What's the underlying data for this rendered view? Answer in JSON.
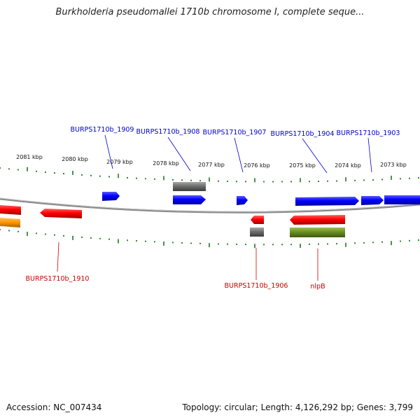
{
  "title": "Burkholderia pseudomallei 1710b chromosome I, complete seque...",
  "footer": {
    "accession": "Accession: NC_007434",
    "topology": "Topology: circular; Length: 4,126,292 bp; Genes: 3,799"
  },
  "colors": {
    "forward_strand": "#0000ff",
    "reverse_strand": "#ff0000",
    "grey_feature": "#6e6e6e",
    "orange_feature": "#ff9900",
    "olive_feature": "#6b8e23",
    "tick": "#1a7a1a",
    "backbone": "#888888"
  },
  "scale_labels": [
    "2081 kbp",
    "2080 kbp",
    "2079 kbp",
    "2078 kbp",
    "2077 kbp",
    "2076 kbp",
    "2075 kbp",
    "2074 kbp",
    "2073 kbp"
  ],
  "upper_labels": [
    "BURPS1710b_1909",
    "BURPS1710b_1908",
    "BURPS1710b_1907",
    "BURPS1710b_1904",
    "BURPS1710b_1903"
  ],
  "lower_labels": [
    "BURPS1710b_1910",
    "BURPS1710b_1906",
    "nlpB"
  ]
}
